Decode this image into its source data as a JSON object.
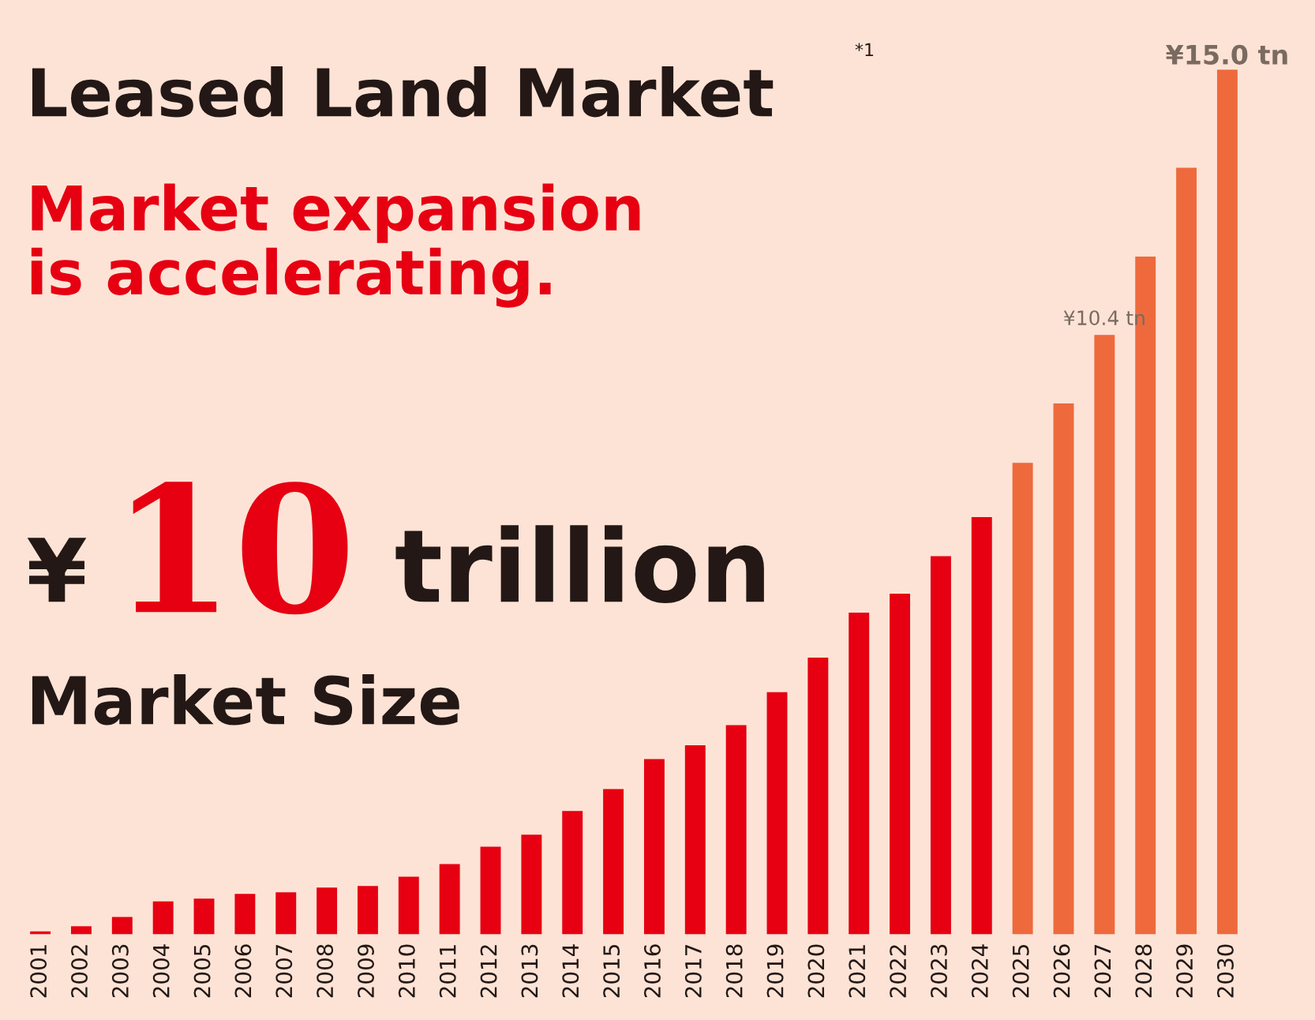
{
  "chart_data": {
    "type": "bar",
    "title": "Leased Land Market",
    "subtitle": "Market expansion\nis accelerating.",
    "annotations": [
      "*1",
      "¥",
      "10",
      "trillion",
      "Market Size"
    ],
    "categories": [
      "2001",
      "2002",
      "2003",
      "2004",
      "2005",
      "2006",
      "2007",
      "2008",
      "2009",
      "2010",
      "2011",
      "2012",
      "2013",
      "2014",
      "2015",
      "2016",
      "2017",
      "2018",
      "2019",
      "2020",
      "2021",
      "2022",
      "2023",
      "2024",
      "2025",
      "2026",
      "2027",
      "2028",
      "2029",
      "2030"
    ],
    "values": [
      0.05,
      0.14,
      0.3,
      0.57,
      0.62,
      0.7,
      0.73,
      0.81,
      0.84,
      1.0,
      1.22,
      1.52,
      1.73,
      2.14,
      2.52,
      3.04,
      3.28,
      3.63,
      4.2,
      4.8,
      5.58,
      5.91,
      6.56,
      7.24,
      8.18,
      9.21,
      10.4,
      11.76,
      13.3,
      15.0
    ],
    "colors": [
      "#e60012",
      "#e60012",
      "#e60012",
      "#e60012",
      "#e60012",
      "#e60012",
      "#e60012",
      "#e60012",
      "#e60012",
      "#e60012",
      "#e60012",
      "#e60012",
      "#e60012",
      "#e60012",
      "#e60012",
      "#e60012",
      "#e60012",
      "#e60012",
      "#e60012",
      "#e60012",
      "#e60012",
      "#e60012",
      "#e60012",
      "#e60012",
      "#ee6a3c",
      "#ee6a3c",
      "#ee6a3c",
      "#ee6a3c",
      "#ee6a3c",
      "#ee6a3c"
    ],
    "value_labels": [
      null,
      null,
      null,
      null,
      null,
      null,
      null,
      null,
      null,
      null,
      null,
      null,
      null,
      null,
      null,
      null,
      null,
      null,
      null,
      null,
      null,
      null,
      null,
      null,
      null,
      null,
      "¥10.4 tn",
      null,
      null,
      "¥15.0 tn"
    ],
    "grid": false,
    "legend": false
  }
}
